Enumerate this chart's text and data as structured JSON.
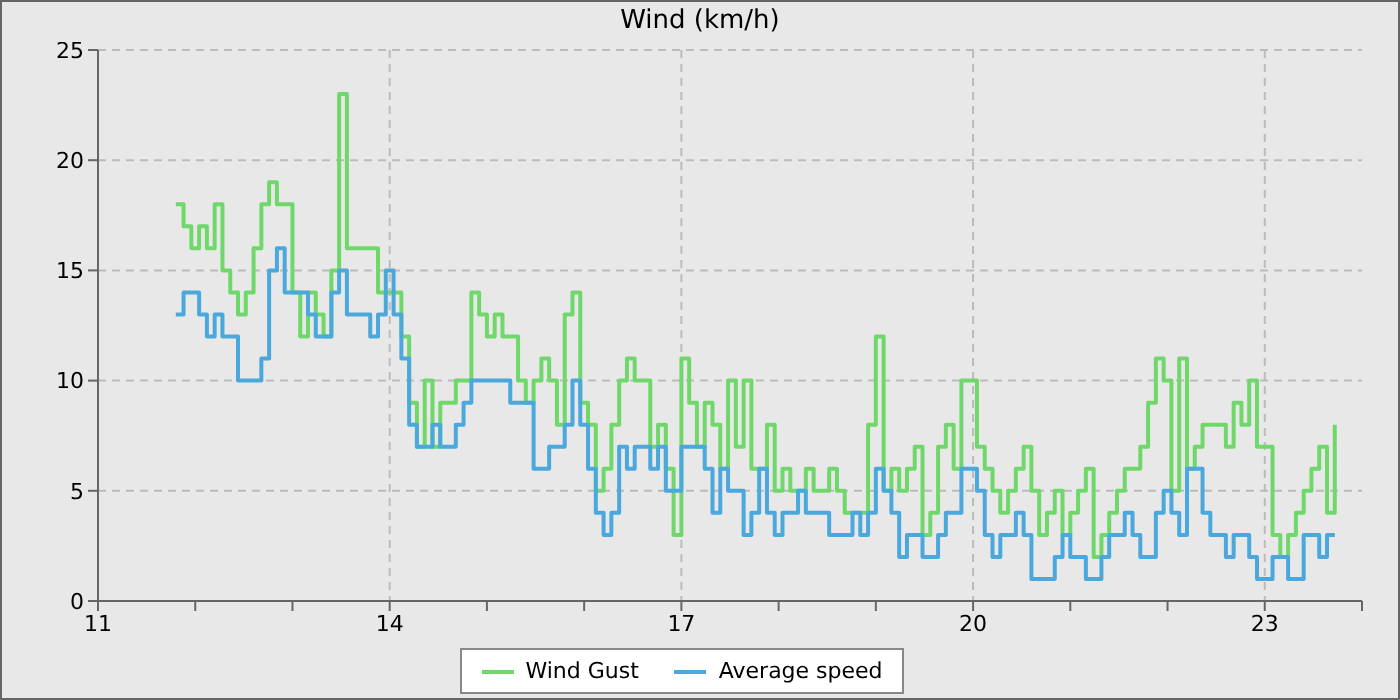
{
  "chart_data": {
    "type": "step",
    "title": "Wind (km/h)",
    "x": [
      11.8,
      11.88,
      11.96,
      12.04,
      12.12,
      12.2,
      12.28,
      12.36,
      12.44,
      12.52,
      12.6,
      12.68,
      12.76,
      12.84,
      12.92,
      13,
      13.08,
      13.16,
      13.24,
      13.32,
      13.4,
      13.48,
      13.56,
      13.64,
      13.72,
      13.8,
      13.88,
      13.96,
      14.04,
      14.12,
      14.2,
      14.28,
      14.36,
      14.44,
      14.52,
      14.6,
      14.68,
      14.76,
      14.84,
      14.92,
      15,
      15.08,
      15.16,
      15.24,
      15.32,
      15.4,
      15.48,
      15.56,
      15.64,
      15.72,
      15.8,
      15.88,
      15.96,
      16.04,
      16.12,
      16.2,
      16.28,
      16.36,
      16.44,
      16.52,
      16.6,
      16.68,
      16.76,
      16.84,
      16.92,
      17,
      17.08,
      17.16,
      17.24,
      17.32,
      17.4,
      17.48,
      17.56,
      17.64,
      17.72,
      17.8,
      17.88,
      17.96,
      18.04,
      18.12,
      18.2,
      18.28,
      18.36,
      18.44,
      18.52,
      18.6,
      18.68,
      18.76,
      18.84,
      18.92,
      19,
      19.08,
      19.16,
      19.24,
      19.32,
      19.4,
      19.48,
      19.56,
      19.64,
      19.72,
      19.8,
      19.88,
      19.96,
      20.04,
      20.12,
      20.2,
      20.28,
      20.36,
      20.44,
      20.52,
      20.6,
      20.68,
      20.76,
      20.84,
      20.92,
      21,
      21.08,
      21.16,
      21.24,
      21.32,
      21.4,
      21.48,
      21.56,
      21.64,
      21.72,
      21.8,
      21.88,
      21.96,
      22.04,
      22.12,
      22.2,
      22.28,
      22.36,
      22.44,
      22.52,
      22.6,
      22.68,
      22.76,
      22.84,
      22.92,
      23,
      23.08,
      23.16,
      23.24,
      23.32,
      23.4,
      23.48,
      23.56,
      23.64,
      23.72
    ],
    "series": [
      {
        "name": "Wind Gust",
        "color": "#70d86a",
        "values": [
          18,
          17,
          16,
          17,
          16,
          18,
          15,
          14,
          13,
          14,
          16,
          18,
          19,
          18,
          18,
          14,
          12,
          14,
          13,
          12,
          15,
          23,
          16,
          16,
          16,
          16,
          14,
          14,
          14,
          12,
          9,
          7,
          10,
          7,
          9,
          9,
          10,
          10,
          14,
          13,
          12,
          13,
          12,
          12,
          10,
          9,
          10,
          11,
          10,
          8,
          13,
          14,
          9,
          8,
          5,
          6,
          8,
          10,
          11,
          10,
          10,
          7,
          8,
          6,
          3,
          11,
          9,
          7,
          9,
          8,
          6,
          10,
          7,
          10,
          6,
          6,
          8,
          5,
          6,
          5,
          5,
          6,
          5,
          5,
          6,
          5,
          4,
          4,
          4,
          8,
          12,
          5,
          6,
          5,
          6,
          7,
          3,
          4,
          7,
          8,
          6,
          10,
          10,
          7,
          6,
          5,
          4,
          5,
          6,
          7,
          5,
          3,
          4,
          5,
          3,
          4,
          5,
          6,
          2,
          3,
          4,
          5,
          6,
          6,
          7,
          9,
          11,
          10,
          5,
          11,
          6,
          7,
          8,
          8,
          8,
          7,
          9,
          8,
          10,
          7,
          7,
          3,
          2,
          3,
          4,
          5,
          6,
          7,
          4,
          8
        ]
      },
      {
        "name": "Average speed",
        "color": "#4aa8dc",
        "values": [
          13,
          14,
          14,
          13,
          12,
          13,
          12,
          12,
          10,
          10,
          10,
          11,
          15,
          16,
          14,
          14,
          14,
          13,
          12,
          12,
          14,
          15,
          13,
          13,
          13,
          12,
          13,
          15,
          13,
          11,
          8,
          7,
          7,
          8,
          7,
          7,
          8,
          9,
          10,
          10,
          10,
          10,
          10,
          9,
          9,
          9,
          6,
          6,
          7,
          7,
          8,
          10,
          8,
          6,
          4,
          3,
          4,
          7,
          6,
          7,
          7,
          6,
          7,
          5,
          5,
          7,
          7,
          7,
          6,
          4,
          6,
          5,
          5,
          3,
          4,
          6,
          4,
          3,
          4,
          4,
          5,
          4,
          4,
          4,
          3,
          3,
          3,
          4,
          3,
          4,
          6,
          5,
          4,
          2,
          3,
          3,
          2,
          2,
          3,
          4,
          4,
          6,
          6,
          5,
          3,
          2,
          3,
          3,
          4,
          3,
          1,
          1,
          1,
          2,
          3,
          2,
          2,
          1,
          1,
          2,
          3,
          3,
          4,
          3,
          2,
          2,
          4,
          5,
          4,
          3,
          6,
          6,
          4,
          3,
          3,
          2,
          3,
          3,
          2,
          1,
          1,
          2,
          2,
          1,
          1,
          3,
          3,
          2,
          3,
          3
        ]
      }
    ],
    "xlim": [
      11,
      24
    ],
    "xticks": [
      11,
      {
        "value": 12,
        "label": null
      },
      {
        "value": 13,
        "label": null
      },
      14,
      {
        "value": 15,
        "label": null
      },
      {
        "value": 16,
        "label": null
      },
      17,
      {
        "value": 18,
        "label": null
      },
      {
        "value": 19,
        "label": null
      },
      20,
      {
        "value": 21,
        "label": null
      },
      {
        "value": 22,
        "label": null
      },
      23,
      {
        "value": 24,
        "label": null
      }
    ],
    "ylim": [
      0,
      25
    ],
    "yticks": [
      0,
      5,
      10,
      15,
      20,
      25
    ],
    "grid": true,
    "legend": "bottom"
  }
}
